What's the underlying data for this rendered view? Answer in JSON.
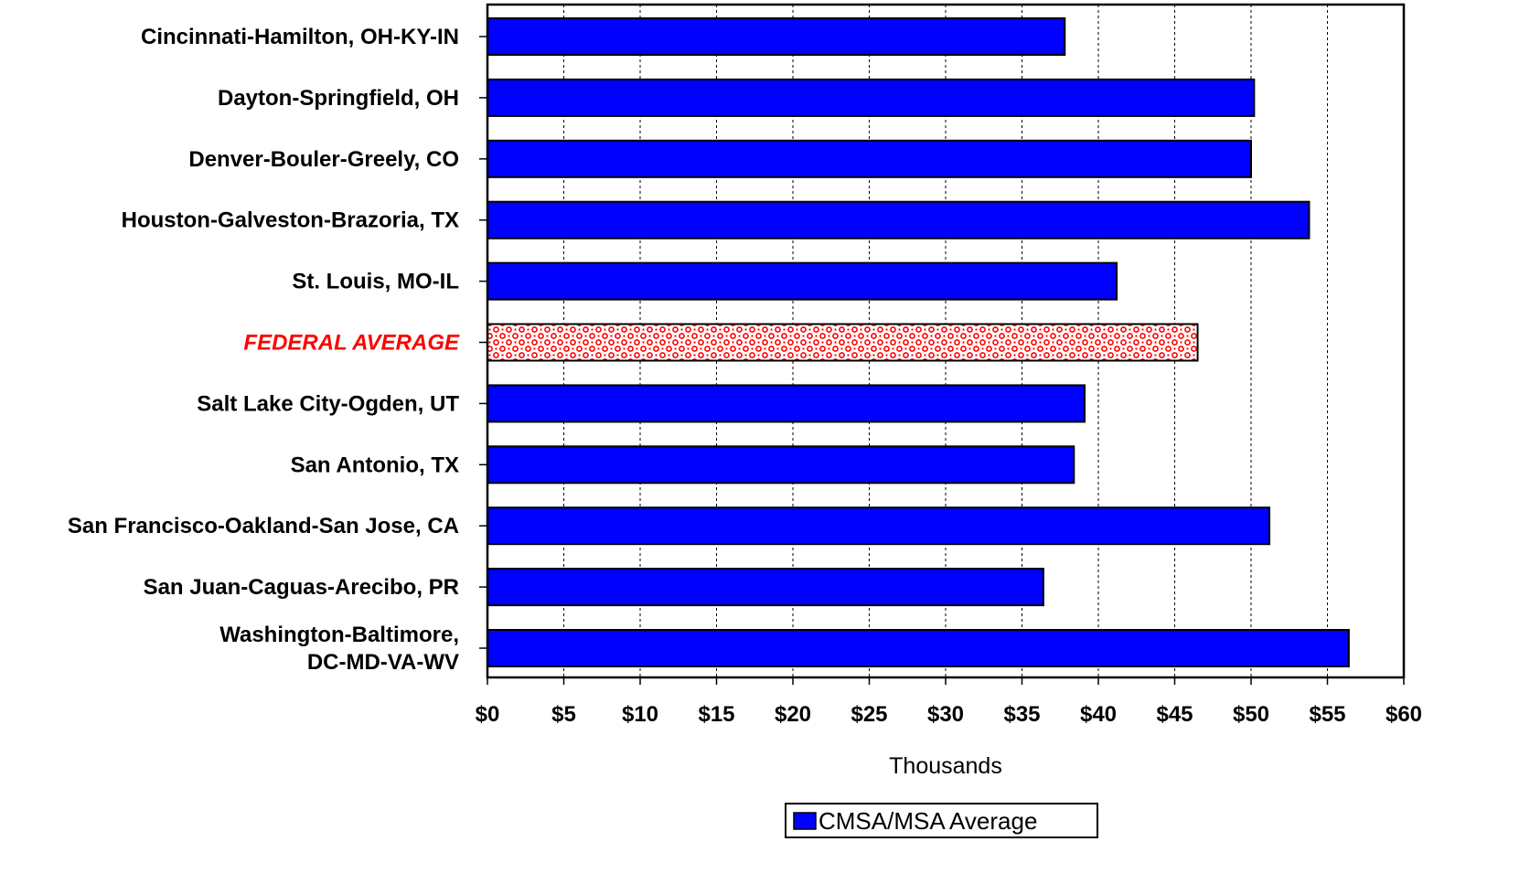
{
  "chart_data": {
    "type": "bar",
    "orientation": "horizontal",
    "title": "",
    "xlabel": "Thousands",
    "ylabel": "",
    "xlim": [
      0,
      60
    ],
    "x_tick_labels": [
      "$0",
      "$5",
      "$10",
      "$15",
      "$20",
      "$25",
      "$30",
      "$35",
      "$40",
      "$45",
      "$50",
      "$55",
      "$60"
    ],
    "grid": true,
    "categories": [
      "Cincinnati-Hamilton, OH-KY-IN",
      "Dayton-Springfield, OH",
      "Denver-Bouler-Greely, CO",
      "Houston-Galveston-Brazoria, TX",
      "St. Louis, MO-IL",
      "FEDERAL AVERAGE",
      "Salt Lake City-Ogden, UT",
      "San Antonio, TX",
      "San Francisco-Oakland-San Jose, CA",
      "San Juan-Caguas-Arecibo, PR",
      "Washington-Baltimore, DC-MD-VA-WV"
    ],
    "category_lines": [
      [
        "Cincinnati-Hamilton, OH-KY-IN"
      ],
      [
        "Dayton-Springfield, OH"
      ],
      [
        "Denver-Bouler-Greely, CO"
      ],
      [
        "Houston-Galveston-Brazoria, TX"
      ],
      [
        "St. Louis, MO-IL"
      ],
      [
        "FEDERAL AVERAGE"
      ],
      [
        "Salt Lake City-Ogden, UT"
      ],
      [
        "San Antonio, TX"
      ],
      [
        "San Francisco-Oakland-San Jose, CA"
      ],
      [
        "San Juan-Caguas-Arecibo, PR"
      ],
      [
        "Washington-Baltimore,",
        "DC-MD-VA-WV"
      ]
    ],
    "values": [
      37.8,
      50.2,
      50.0,
      53.8,
      41.2,
      46.5,
      39.1,
      38.4,
      51.2,
      36.4,
      56.4
    ],
    "highlight_category": "FEDERAL AVERAGE",
    "series": [
      {
        "name": "CMSA/MSA Average",
        "values": [
          37.8,
          50.2,
          50.0,
          53.8,
          41.2,
          null,
          39.1,
          38.4,
          51.2,
          36.4,
          56.4
        ]
      }
    ],
    "legend_position": "bottom",
    "colors": {
      "bar": "#0000ff",
      "highlight_pattern": "#ff0000",
      "highlight_label": "#ff0000",
      "bar_outline": "#000000"
    }
  }
}
